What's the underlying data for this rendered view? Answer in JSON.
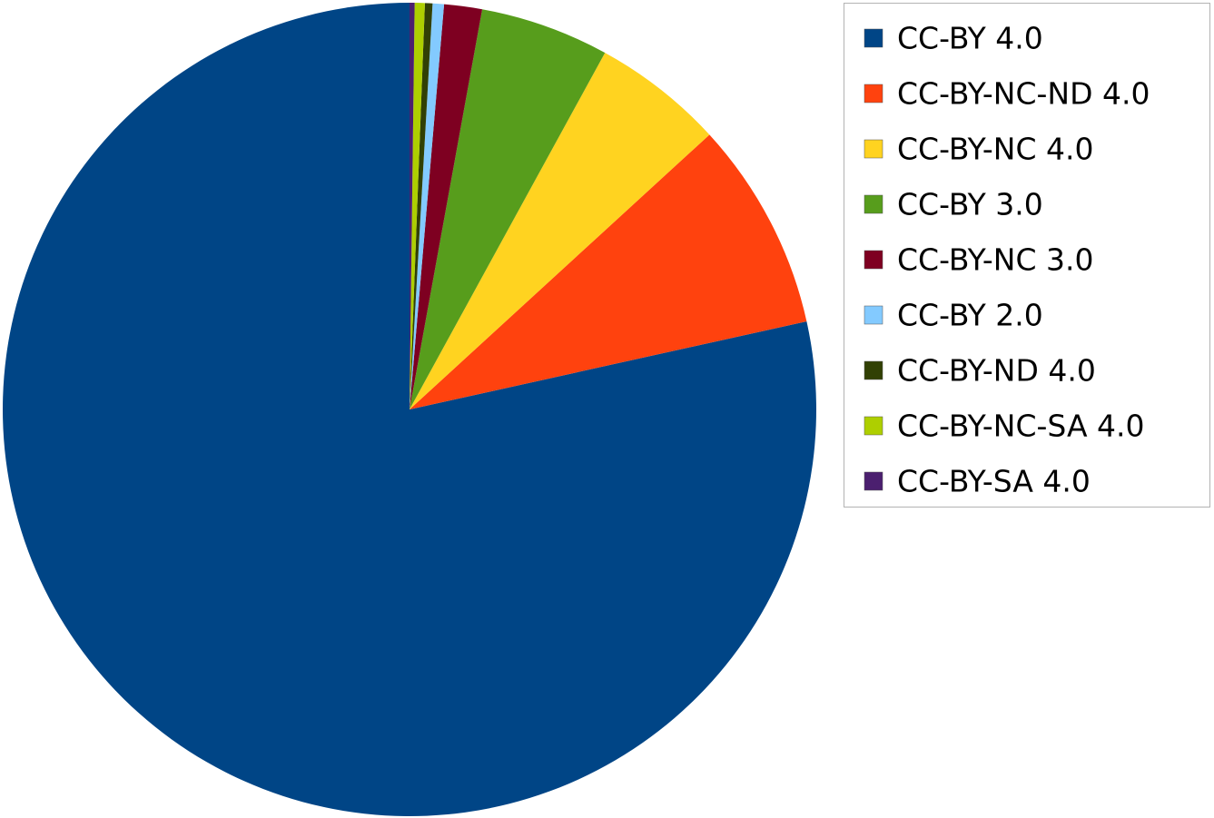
{
  "chart_data": {
    "type": "pie",
    "legend": "right",
    "categories": [
      "CC-BY 4.0",
      "CC-BY-NC-ND 4.0",
      "CC-BY-NC 4.0",
      "CC-BY 3.0",
      "CC-BY-NC 3.0",
      "CC-BY 2.0",
      "CC-BY-ND 4.0",
      "CC-BY-NC-SA 4.0",
      "CC-BY-SA 4.0"
    ],
    "values": [
      78.2,
      8.3,
      5.2,
      5.1,
      1.5,
      0.45,
      0.3,
      0.4,
      0.2
    ],
    "colors": [
      "#004586",
      "#ff420e",
      "#ffd320",
      "#579d1c",
      "#7e0021",
      "#83caff",
      "#314004",
      "#aecf00",
      "#4b1f6f"
    ]
  }
}
